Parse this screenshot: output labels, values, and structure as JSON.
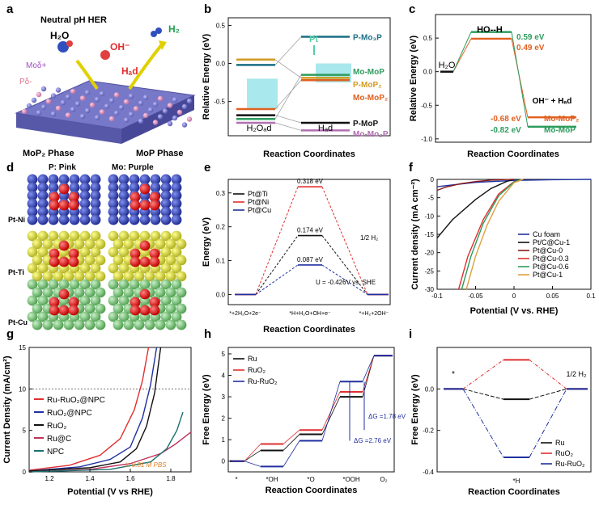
{
  "panel_letters": [
    "a",
    "b",
    "c",
    "d",
    "e",
    "f",
    "g",
    "h",
    "i"
  ],
  "panel_a": {
    "title": "Neutral pH HER",
    "h2o": "H₂O",
    "oh": "OH⁻",
    "h2": "H₂",
    "had": "Hₐd",
    "mo_label": "Moδ+",
    "p_label": "Pδ-",
    "phase_left": "MoP₂ Phase",
    "phase_right": "MoP Phase",
    "legend_p": "P: Pink",
    "legend_mo": "Mo: Purple",
    "colors": {
      "p": "#e8a0c8",
      "mo": "#8080d0"
    }
  },
  "chart_data": [
    {
      "id": "b",
      "type": "line",
      "title": "",
      "ylabel": "Relative Energy (eV)",
      "xlabel": "Reaction Coordinates",
      "ylim": [
        -0.95,
        0.6
      ],
      "categories": [
        "H2Oad",
        "Had"
      ],
      "cat_labels": [
        "H₂Oₐd",
        "Hₐd"
      ],
      "yticks": [
        "0.5",
        "0.0",
        "-0.5"
      ],
      "ytick_values": [
        0.5,
        0.0,
        -0.5
      ],
      "series": [
        {
          "name": "P-Mo₃P",
          "values": [
            -0.02,
            0.35
          ],
          "color": "#1a6e86"
        },
        {
          "name": "Mo-MoP",
          "values": [
            -0.73,
            -0.15
          ],
          "color": "#2e9c5e"
        },
        {
          "name": "P-MoP₂",
          "values": [
            0.05,
            -0.19
          ],
          "color": "#d29b20"
        },
        {
          "name": "Mo-MoP₂",
          "values": [
            -0.6,
            -0.22
          ],
          "color": "#e06020"
        },
        {
          "name": "P-MoP",
          "values": [
            -0.68,
            -0.78
          ],
          "color": "#111111"
        },
        {
          "name": "Mo-Mo₃P",
          "values": [
            -0.78,
            -0.88
          ],
          "color": "#b070b0"
        }
      ],
      "annotation": "Pt"
    },
    {
      "id": "c",
      "type": "line",
      "ylabel": "Relative Energy (eV)",
      "xlabel": "Reaction Coordinates",
      "ylim": [
        -1.05,
        0.85
      ],
      "yticks": [
        "0.5",
        "0.0",
        "-0.5",
        "-1.0"
      ],
      "ytick_values": [
        0.5,
        0.0,
        -0.5,
        -1.0
      ],
      "states": [
        "H2O",
        "HO--H",
        "OH- + Had"
      ],
      "state_labels": [
        "H₂O",
        "HO--H",
        "OH⁻ + Hₐd"
      ],
      "series": [
        {
          "name": "Mo-MoP₂",
          "values": [
            0.0,
            0.49,
            -0.68
          ],
          "color": "#e06020"
        },
        {
          "name": "Mo-MoP",
          "values": [
            0.0,
            0.59,
            -0.82
          ],
          "color": "#2e9c5e"
        }
      ],
      "labels": {
        "ts_top": "0.59 eV",
        "ts_bot": "0.49 eV",
        "fs_top": "-0.68 eV",
        "fs_bot": "-0.82 eV"
      }
    },
    {
      "id": "e",
      "type": "line",
      "ylabel": "Energy (eV)",
      "xlabel": "Reaction Coordinates",
      "ylim": [
        -0.03,
        0.34
      ],
      "yticks": [
        "0.3",
        "0.2",
        "0.1",
        "0.0"
      ],
      "ytick_values": [
        0.3,
        0.2,
        0.1,
        0.0
      ],
      "states": [
        "*+2H2O+2e-",
        "*H+H2O+OH+e-",
        "*+H2+2OH-"
      ],
      "state_labels": [
        "*+2H₂O+2e⁻",
        "*H+H₂O+OH+e⁻",
        "*+H₂+2OH⁻"
      ],
      "series": [
        {
          "name": "Pt@Ti",
          "values": [
            0.0,
            0.174,
            0.0
          ],
          "color": "#111111"
        },
        {
          "name": "Pt@Ni",
          "values": [
            0.0,
            0.318,
            0.0
          ],
          "color": "#e03030"
        },
        {
          "name": "Pt@Cu",
          "values": [
            0.0,
            0.087,
            0.0
          ],
          "color": "#2030a0"
        }
      ],
      "labels": {
        "ni": "0.318 eV",
        "ti": "0.174 eV",
        "cu": "0.087 eV",
        "half_h2": "1/2 H₂",
        "potential": "U = -0.426V vs. SHE"
      }
    },
    {
      "id": "f",
      "type": "line",
      "ylabel": "Current density (mA cm⁻²)",
      "xlabel": "Potential (V vs. RHE)",
      "xlim": [
        -0.1,
        0.1
      ],
      "ylim": [
        -30,
        0
      ],
      "xticks": [
        "-0.1",
        "-0.05",
        "0",
        "0.05",
        "0.1"
      ],
      "xtick_values": [
        -0.1,
        -0.05,
        0.0,
        0.05,
        0.1
      ],
      "yticks": [
        "0",
        "-5",
        "-10",
        "-15",
        "-20",
        "-25",
        "-30"
      ],
      "ytick_values": [
        0,
        -5,
        -10,
        -15,
        -20,
        -25,
        -30
      ],
      "series": [
        {
          "name": "Cu foam",
          "color": "#2030a0",
          "x": [
            -0.1,
            -0.05,
            0.0,
            0.05,
            0.1
          ],
          "y": [
            -2.0,
            -0.8,
            -0.3,
            -0.1,
            0.0
          ]
        },
        {
          "name": "Pt/C@Cu-1",
          "color": "#111111",
          "x": [
            -0.1,
            -0.08,
            -0.05,
            -0.03,
            -0.01,
            0.0
          ],
          "y": [
            -16.0,
            -11.0,
            -5.5,
            -2.5,
            -0.6,
            0.0
          ]
        },
        {
          "name": "Pt@Cu-0",
          "color": "#8a1a1a",
          "x": [
            -0.1,
            -0.09,
            -0.07,
            -0.05,
            -0.03,
            -0.01,
            0.0
          ],
          "y": [
            -3.0,
            -2.2,
            -1.2,
            -0.6,
            -0.2,
            -0.05,
            0.0
          ]
        },
        {
          "name": "Pt@Cu-0.3",
          "color": "#e03030",
          "x": [
            -0.072,
            -0.06,
            -0.04,
            -0.02,
            0.0,
            0.01
          ],
          "y": [
            -30.0,
            -21.0,
            -11.0,
            -4.0,
            -0.6,
            0.0
          ]
        },
        {
          "name": "Pt@Cu-0.6",
          "color": "#2e9c5e",
          "x": [
            -0.068,
            -0.056,
            -0.04,
            -0.02,
            0.0,
            0.01
          ],
          "y": [
            -30.0,
            -21.0,
            -12.0,
            -4.5,
            -0.7,
            0.0
          ]
        },
        {
          "name": "Pt@Cu-1",
          "color": "#e0a040",
          "x": [
            -0.062,
            -0.05,
            -0.035,
            -0.02,
            0.0,
            0.012
          ],
          "y": [
            -30.0,
            -21.0,
            -12.5,
            -6.0,
            -0.9,
            0.0
          ]
        }
      ]
    },
    {
      "id": "g",
      "type": "line",
      "ylabel": "Current Density (mA/cm²)",
      "xlabel": "Potential (V vs RHE)",
      "xlim": [
        1.1,
        1.9
      ],
      "ylim": [
        0,
        15
      ],
      "xticks": [
        "1.2",
        "1.4",
        "1.6",
        "1.8"
      ],
      "xtick_values": [
        1.2,
        1.4,
        1.6,
        1.8
      ],
      "yticks": [
        "0",
        "5",
        "10",
        "15"
      ],
      "ytick_values": [
        0,
        5,
        10,
        15
      ],
      "reference_line": 10,
      "annotation": "in 0.01 M PBS",
      "series": [
        {
          "name": "Ru-RuO₂@NPC",
          "color": "#e03030",
          "x": [
            1.1,
            1.3,
            1.45,
            1.55,
            1.62,
            1.66,
            1.69
          ],
          "y": [
            0.2,
            0.8,
            2.0,
            4.0,
            7.5,
            11.0,
            15.0
          ]
        },
        {
          "name": "RuO₂@NPC",
          "color": "#2030a0",
          "x": [
            1.1,
            1.35,
            1.5,
            1.6,
            1.66,
            1.7,
            1.73
          ],
          "y": [
            0.1,
            0.6,
            1.5,
            3.0,
            6.5,
            10.5,
            15.0
          ]
        },
        {
          "name": "RuO₂",
          "color": "#111111",
          "x": [
            1.1,
            1.4,
            1.55,
            1.63,
            1.68,
            1.72,
            1.75
          ],
          "y": [
            0.1,
            0.5,
            1.2,
            2.8,
            5.5,
            9.5,
            15.0
          ]
        },
        {
          "name": "Ru@C",
          "color": "#c0305a",
          "x": [
            1.1,
            1.4,
            1.6,
            1.75,
            1.82,
            1.9
          ],
          "y": [
            0.0,
            0.3,
            1.0,
            2.2,
            3.3,
            4.8
          ]
        },
        {
          "name": "NPC",
          "color": "#1a7070",
          "x": [
            1.1,
            1.5,
            1.7,
            1.78,
            1.83,
            1.86
          ],
          "y": [
            0.0,
            0.3,
            1.2,
            2.8,
            5.0,
            7.2
          ]
        }
      ]
    },
    {
      "id": "h",
      "type": "line",
      "ylabel": "Free Energy (eV)",
      "xlabel": "Reaction Coordinates",
      "ylim": [
        -0.5,
        5.3
      ],
      "yticks": [
        "0",
        "1",
        "2",
        "3",
        "4",
        "5"
      ],
      "ytick_values": [
        0,
        1,
        2,
        3,
        4,
        5
      ],
      "states": [
        "*",
        "*OH",
        "*O",
        "*OOH",
        "O2"
      ],
      "state_labels": [
        "*",
        "*OH",
        "*O",
        "*OOH",
        "O₂"
      ],
      "series": [
        {
          "name": "Ru",
          "values": [
            0.0,
            0.5,
            1.25,
            3.0,
            4.92
          ],
          "color": "#111111"
        },
        {
          "name": "RuO₂",
          "values": [
            0.0,
            0.8,
            1.45,
            3.23,
            4.92
          ],
          "color": "#e03030"
        },
        {
          "name": "Ru-RuO₂",
          "values": [
            0.0,
            -0.25,
            0.95,
            3.71,
            4.92
          ],
          "color": "#2030a0"
        }
      ],
      "labels": {
        "dg1": "ΔG =1.78 eV",
        "dg2": "ΔG =2.76 eV"
      }
    },
    {
      "id": "i",
      "type": "line",
      "ylabel": "Free Energy (eV)",
      "xlabel": "Reaction Coordinates",
      "ylim": [
        -0.4,
        0.2
      ],
      "yticks": [
        "0.0",
        "-0.2",
        "-0.4"
      ],
      "ytick_values": [
        0.0,
        -0.2,
        -0.4
      ],
      "states": [
        "*",
        "*H",
        "1/2 H2"
      ],
      "state_labels": [
        "*",
        "*H",
        "1/2 H₂"
      ],
      "series": [
        {
          "name": "Ru",
          "values": [
            0.0,
            -0.05,
            0.0
          ],
          "color": "#111111"
        },
        {
          "name": "RuO₂",
          "values": [
            0.0,
            0.14,
            0.0
          ],
          "color": "#e03030"
        },
        {
          "name": "Ru-RuO₂",
          "values": [
            0.0,
            -0.33,
            0.0
          ],
          "color": "#2030a0"
        }
      ]
    }
  ],
  "panel_d": {
    "rows": [
      "Pt-Ni",
      "Pt-Ti",
      "Pt-Cu"
    ],
    "colors": {
      "ni": "#3848b0",
      "ti": "#e0e040",
      "cu": "#80d080",
      "pt": "#e02020"
    }
  }
}
